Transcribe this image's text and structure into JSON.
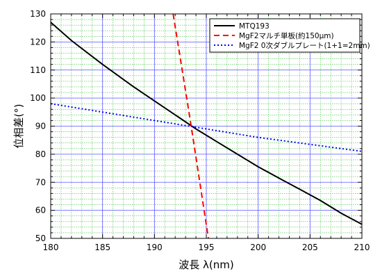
{
  "chart_data": {
    "type": "line",
    "xlabel": "波長 λ(nm)",
    "ylabel": "位相差(°)",
    "xlim": [
      180,
      210
    ],
    "ylim": [
      50,
      130
    ],
    "x_ticks": [
      "180",
      "185",
      "190",
      "195",
      "200",
      "205",
      "210"
    ],
    "y_ticks": [
      "50",
      "60",
      "70",
      "80",
      "90",
      "100",
      "110",
      "120",
      "130"
    ],
    "grid": "major and minor",
    "legend_position": "top-right",
    "series": [
      {
        "name": "MTQ193",
        "color": "#000000",
        "style": "solid",
        "x": [
          180,
          182,
          185,
          188,
          190,
          192,
          194,
          196,
          198,
          200,
          202,
          204,
          206,
          208,
          210
        ],
        "y": [
          127,
          120.5,
          112,
          104,
          99,
          94,
          89,
          84.5,
          80,
          75.5,
          71.5,
          67.5,
          63.5,
          59,
          55
        ]
      },
      {
        "name": "MgF2マルチ単板(約150μm)",
        "color": "#ff0000",
        "style": "dashed",
        "x": [
          191.8,
          192.5,
          193.5,
          194.5,
          195.2
        ],
        "y": [
          130,
          114,
          91,
          67,
          50
        ]
      },
      {
        "name": "MgF2 0次ダブルプレート(1+1=2mm)",
        "color": "#0000ff",
        "style": "dotted",
        "x": [
          180,
          185,
          190,
          195,
          200,
          205,
          210
        ],
        "y": [
          98,
          95,
          92,
          89,
          86,
          83.5,
          81
        ]
      }
    ]
  }
}
